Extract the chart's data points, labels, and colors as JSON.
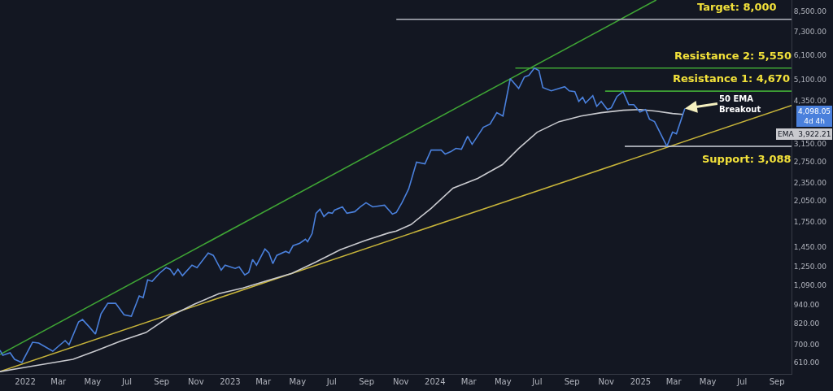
{
  "chart_data": {
    "type": "line",
    "log": true,
    "xlim": [
      "2021-11-17",
      "2025-09-27"
    ],
    "ylim": [
      560,
      9250
    ],
    "xticks": [
      {
        "value": "2022-01-01",
        "label": "2022"
      },
      {
        "value": "2022-03-01",
        "label": "Mar"
      },
      {
        "value": "2022-05-01",
        "label": "May"
      },
      {
        "value": "2022-07-01",
        "label": "Jul"
      },
      {
        "value": "2022-09-01",
        "label": "Sep"
      },
      {
        "value": "2022-11-01",
        "label": "Nov"
      },
      {
        "value": "2023-01-01",
        "label": "2023"
      },
      {
        "value": "2023-03-01",
        "label": "Mar"
      },
      {
        "value": "2023-05-01",
        "label": "May"
      },
      {
        "value": "2023-07-01",
        "label": "Jul"
      },
      {
        "value": "2023-09-01",
        "label": "Sep"
      },
      {
        "value": "2023-11-01",
        "label": "Nov"
      },
      {
        "value": "2024-01-01",
        "label": "2024"
      },
      {
        "value": "2024-03-01",
        "label": "Mar"
      },
      {
        "value": "2024-05-01",
        "label": "May"
      },
      {
        "value": "2024-07-01",
        "label": "Jul"
      },
      {
        "value": "2024-09-01",
        "label": "Sep"
      },
      {
        "value": "2024-11-01",
        "label": "Nov"
      },
      {
        "value": "2025-01-01",
        "label": "2025"
      },
      {
        "value": "2025-03-01",
        "label": "Mar"
      },
      {
        "value": "2025-05-01",
        "label": "May"
      },
      {
        "value": "2025-07-01",
        "label": "Jul"
      },
      {
        "value": "2025-09-01",
        "label": "Sep"
      }
    ],
    "yticks": [
      {
        "value": 610,
        "label": "610.00"
      },
      {
        "value": 700,
        "label": "700.00"
      },
      {
        "value": 820,
        "label": "820.00"
      },
      {
        "value": 940,
        "label": "940.00"
      },
      {
        "value": 1090,
        "label": "1,090.00"
      },
      {
        "value": 1250,
        "label": "1,250.00"
      },
      {
        "value": 1450,
        "label": "1,450.00"
      },
      {
        "value": 1750,
        "label": "1,750.00"
      },
      {
        "value": 2050,
        "label": "2,050.00"
      },
      {
        "value": 2350,
        "label": "2,350.00"
      },
      {
        "value": 2750,
        "label": "2,750.00"
      },
      {
        "value": 3150,
        "label": "3,150.00"
      },
      {
        "value": 4350,
        "label": "4,350.00"
      },
      {
        "value": 5100,
        "label": "5,100.00"
      },
      {
        "value": 6100,
        "label": "6,100.00"
      },
      {
        "value": 7300,
        "label": "7,300.00"
      },
      {
        "value": 8500,
        "label": "8,500.00"
      }
    ],
    "series": [
      {
        "color": "#3fa535",
        "x": [
          "2021-11-17",
          "2025-01-29"
        ],
        "values": [
          648,
          9250
        ]
      },
      {
        "color": "#c7b43a",
        "x": [
          "2021-11-17",
          "2025-09-27"
        ],
        "values": [
          570,
          4194
        ]
      },
      {
        "color": "#b2b5be",
        "x": [
          "2023-10-24",
          "2025-09-27"
        ],
        "values": [
          8000,
          8000
        ]
      },
      {
        "color": "#3fa535",
        "x": [
          "2024-05-23",
          "2025-09-27"
        ],
        "values": [
          5550,
          5550
        ]
      },
      {
        "color": "#3fa535",
        "x": [
          "2024-10-30",
          "2025-09-27"
        ],
        "values": [
          4670,
          4670
        ]
      },
      {
        "color": "#d1d4dc",
        "x": [
          "2024-12-04",
          "2025-09-27"
        ],
        "values": [
          3088,
          3088
        ]
      },
      {
        "color": "#c9cacf",
        "x": [
          "2021-11-17",
          "2021-12-31",
          "2022-02-12",
          "2022-03-27",
          "2022-05-09",
          "2022-06-22",
          "2022-08-04",
          "2022-09-16",
          "2022-10-29",
          "2022-12-12",
          "2023-01-24",
          "2023-03-08",
          "2023-04-21",
          "2023-06-03",
          "2023-07-16",
          "2023-08-28",
          "2023-10-11",
          "2023-10-24",
          "2023-11-19",
          "2023-12-25",
          "2024-02-02",
          "2024-03-17",
          "2024-04-30",
          "2024-05-29",
          "2024-07-01",
          "2024-08-09",
          "2024-09-17",
          "2024-10-23",
          "2024-12-01",
          "2024-12-31",
          "2025-01-29",
          "2025-02-27",
          "2025-03-18"
        ],
        "values": [
          570,
          588,
          606,
          625,
          668,
          719,
          764,
          863,
          945,
          1023,
          1067,
          1128,
          1191,
          1297,
          1421,
          1519,
          1614,
          1634,
          1716,
          1938,
          2256,
          2427,
          2691,
          3039,
          3432,
          3715,
          3876,
          3972,
          4045,
          4069,
          4020,
          3948,
          3922.21
        ]
      },
      {
        "color": "#4a80dc",
        "x": [
          "2021-11-17",
          "2021-11-22",
          "2021-12-05",
          "2021-12-13",
          "2021-12-26",
          "2022-01-14",
          "2022-01-25",
          "2022-02-19",
          "2022-03-01",
          "2022-03-13",
          "2022-03-20",
          "2022-04-06",
          "2022-04-13",
          "2022-04-25",
          "2022-05-06",
          "2022-05-16",
          "2022-05-28",
          "2022-06-11",
          "2022-06-26",
          "2022-07-09",
          "2022-07-23",
          "2022-07-30",
          "2022-08-07",
          "2022-08-15",
          "2022-08-28",
          "2022-09-09",
          "2022-09-16",
          "2022-09-23",
          "2022-09-30",
          "2022-10-08",
          "2022-10-25",
          "2022-11-03",
          "2022-11-23",
          "2022-12-02",
          "2022-12-16",
          "2022-12-23",
          "2023-01-10",
          "2023-01-17",
          "2023-01-27",
          "2023-02-03",
          "2023-02-10",
          "2023-02-17",
          "2023-03-04",
          "2023-03-11",
          "2023-03-18",
          "2023-03-25",
          "2023-04-10",
          "2023-04-16",
          "2023-04-23",
          "2023-05-05",
          "2023-05-15",
          "2023-05-19",
          "2023-05-27",
          "2023-06-03",
          "2023-06-10",
          "2023-06-17",
          "2023-06-25",
          "2023-07-02",
          "2023-07-06",
          "2023-07-20",
          "2023-07-28",
          "2023-08-11",
          "2023-08-21",
          "2023-08-31",
          "2023-09-12",
          "2023-10-03",
          "2023-10-17",
          "2023-10-24",
          "2023-11-03",
          "2023-11-15",
          "2023-11-29",
          "2023-12-14",
          "2023-12-25",
          "2024-01-12",
          "2024-01-19",
          "2024-01-29",
          "2024-02-07",
          "2024-02-17",
          "2024-02-28",
          "2024-03-07",
          "2024-03-27",
          "2024-04-08",
          "2024-04-20",
          "2024-05-01",
          "2024-05-14",
          "2024-05-29",
          "2024-06-08",
          "2024-06-16",
          "2024-06-26",
          "2024-07-04",
          "2024-07-11",
          "2024-07-26",
          "2024-08-19",
          "2024-08-27",
          "2024-09-06",
          "2024-09-13",
          "2024-09-20",
          "2024-09-25",
          "2024-10-08",
          "2024-10-15",
          "2024-10-23",
          "2024-11-03",
          "2024-11-10",
          "2024-11-20",
          "2024-12-01",
          "2024-12-11",
          "2024-12-20",
          "2024-12-31",
          "2025-01-10",
          "2025-01-17",
          "2025-01-26",
          "2025-02-17",
          "2025-02-27",
          "2025-03-06",
          "2025-03-21"
        ],
        "values": [
          669,
          644,
          656,
          625,
          610,
          710,
          706,
          664,
          689,
          719,
          697,
          827,
          842,
          797,
          755,
          879,
          951,
          951,
          873,
          863,
          1005,
          992,
          1134,
          1121,
          1191,
          1243,
          1228,
          1177,
          1228,
          1170,
          1266,
          1243,
          1387,
          1362,
          1220,
          1266,
          1235,
          1250,
          1177,
          1198,
          1321,
          1266,
          1429,
          1387,
          1281,
          1362,
          1404,
          1387,
          1465,
          1492,
          1538,
          1510,
          1605,
          1868,
          1926,
          1823,
          1880,
          1868,
          1914,
          1961,
          1868,
          1891,
          1961,
          2022,
          1961,
          1985,
          1857,
          1880,
          2022,
          2242,
          2741,
          2707,
          3002,
          3002,
          2913,
          2966,
          3039,
          3021,
          3329,
          3133,
          3560,
          3647,
          3972,
          3876,
          5128,
          4767,
          5190,
          5254,
          5550,
          5449,
          4796,
          4680,
          4825,
          4680,
          4652,
          4325,
          4458,
          4272,
          4513,
          4169,
          4325,
          4069,
          4119,
          4485,
          4652,
          4221,
          4221,
          3996,
          4069,
          3783,
          3715,
          3088,
          3432,
          3391,
          4098.05
        ]
      }
    ],
    "annotations": [
      {
        "text": "Target: 8,000",
        "x": "2025-06-22",
        "y": 8000
      },
      {
        "text": "Resistance 2: 5,550",
        "x": "2025-06-15",
        "y": 5550
      },
      {
        "text": "Resistance 1: 4,670",
        "x": "2025-06-12",
        "y": 4670
      },
      {
        "text": "Support: 3,088",
        "x": "2025-07-10",
        "y": 3088
      },
      {
        "text": "50 EMA\nBreakout",
        "x": "2025-03-21",
        "y": 4098.05
      },
      "4,098.05\n4d 4h",
      "EMA  3,922.21"
    ]
  }
}
